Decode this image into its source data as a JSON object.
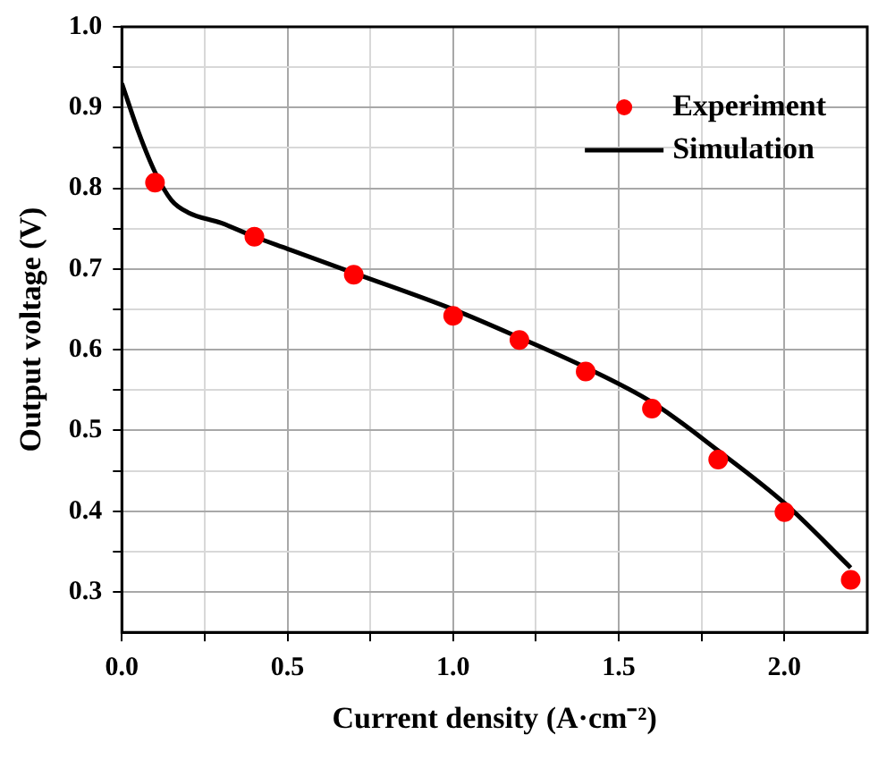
{
  "chart_data": {
    "type": "scatter",
    "xlabel": "Current density (A·cm⁻²)",
    "ylabel": "Output voltage (V)",
    "xlim": [
      0,
      2.25
    ],
    "ylim": [
      0.25,
      1.0
    ],
    "xticks": [
      {
        "value": 0,
        "label": "0.0"
      },
      {
        "value": 0.25,
        "label": null
      },
      {
        "value": 0.5,
        "label": "0.5"
      },
      {
        "value": 0.75,
        "label": null
      },
      {
        "value": 1,
        "label": "1.0"
      },
      {
        "value": 1.25,
        "label": null
      },
      {
        "value": 1.5,
        "label": "1.5"
      },
      {
        "value": 1.75,
        "label": null
      },
      {
        "value": 2,
        "label": "2.0"
      }
    ],
    "yticks": [
      {
        "value": 0.3,
        "label": "0.3"
      },
      {
        "value": 0.35,
        "label": null
      },
      {
        "value": 0.4,
        "label": "0.4"
      },
      {
        "value": 0.45,
        "label": null
      },
      {
        "value": 0.5,
        "label": "0.5"
      },
      {
        "value": 0.55,
        "label": null
      },
      {
        "value": 0.6,
        "label": "0.6"
      },
      {
        "value": 0.65,
        "label": null
      },
      {
        "value": 0.7,
        "label": "0.7"
      },
      {
        "value": 0.75,
        "label": null
      },
      {
        "value": 0.8,
        "label": "0.8"
      },
      {
        "value": 0.85,
        "label": null
      },
      {
        "value": 0.9,
        "label": "0.9"
      },
      {
        "value": 0.95,
        "label": null
      },
      {
        "value": 1.0,
        "label": "1.0"
      }
    ],
    "grid": true,
    "legend": "top right",
    "series": [
      {
        "name": "Experiment",
        "type": "scatter",
        "color": "#ff0000",
        "marker": "circle",
        "x": [
          0.1,
          0.4,
          0.7,
          1.0,
          1.2,
          1.4,
          1.6,
          1.8,
          2.0,
          2.2
        ],
        "values": [
          0.807,
          0.74,
          0.693,
          0.642,
          0.612,
          0.573,
          0.527,
          0.464,
          0.399,
          0.315
        ]
      },
      {
        "name": "Simulation",
        "type": "line",
        "color": "#000000",
        "marker": "none",
        "line_style": "solid",
        "x": [
          0,
          0.05,
          0.1,
          0.15,
          0.2,
          0.3,
          0.4,
          0.5,
          0.7,
          1.0,
          1.2,
          1.4,
          1.6,
          1.8,
          2.0,
          2.2
        ],
        "values": [
          0.93,
          0.87,
          0.82,
          0.785,
          0.77,
          0.757,
          0.74,
          0.725,
          0.695,
          0.65,
          0.615,
          0.578,
          0.535,
          0.475,
          0.41,
          0.33
        ]
      }
    ]
  }
}
